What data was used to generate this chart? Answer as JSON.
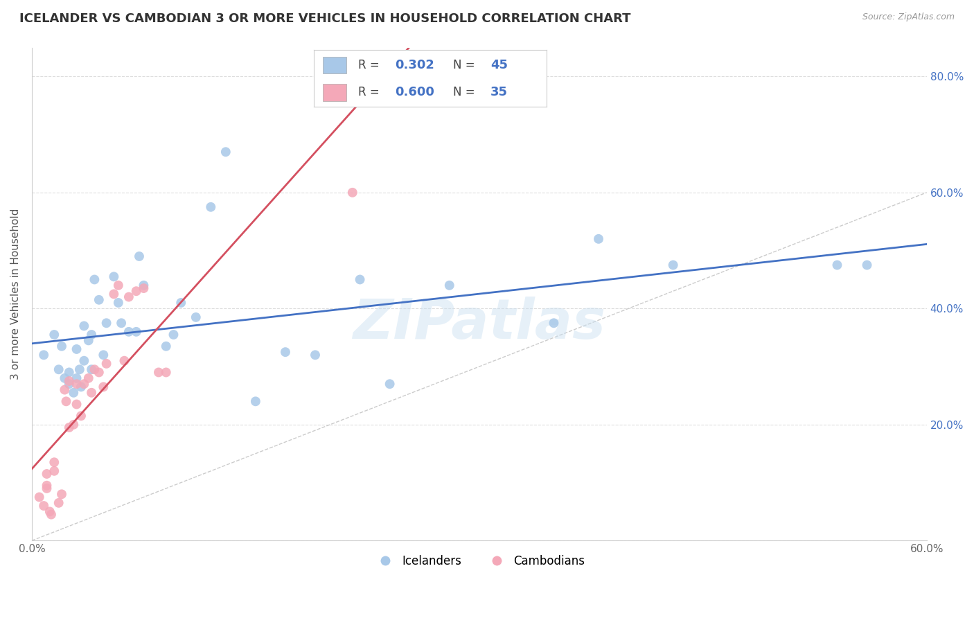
{
  "title": "ICELANDER VS CAMBODIAN 3 OR MORE VEHICLES IN HOUSEHOLD CORRELATION CHART",
  "source": "Source: ZipAtlas.com",
  "ylabel": "3 or more Vehicles in Household",
  "xlim": [
    0,
    0.6
  ],
  "ylim": [
    0,
    0.85
  ],
  "blue_color": "#a8c8e8",
  "pink_color": "#f4a8b8",
  "blue_line_color": "#4472c4",
  "pink_line_color": "#d45060",
  "diagonal_color": "#cccccc",
  "watermark": "ZIPatlas",
  "icelanders_R": "0.302",
  "icelanders_N": "45",
  "cambodians_R": "0.600",
  "cambodians_N": "35",
  "icelanders_x": [
    0.008,
    0.015,
    0.018,
    0.02,
    0.022,
    0.025,
    0.025,
    0.028,
    0.03,
    0.03,
    0.032,
    0.033,
    0.035,
    0.035,
    0.038,
    0.04,
    0.04,
    0.042,
    0.045,
    0.048,
    0.05,
    0.055,
    0.058,
    0.06,
    0.065,
    0.07,
    0.072,
    0.075,
    0.09,
    0.095,
    0.1,
    0.11,
    0.12,
    0.13,
    0.15,
    0.17,
    0.19,
    0.22,
    0.24,
    0.28,
    0.35,
    0.38,
    0.43,
    0.54,
    0.56
  ],
  "icelanders_y": [
    0.32,
    0.355,
    0.295,
    0.335,
    0.28,
    0.29,
    0.27,
    0.255,
    0.33,
    0.28,
    0.295,
    0.265,
    0.37,
    0.31,
    0.345,
    0.355,
    0.295,
    0.45,
    0.415,
    0.32,
    0.375,
    0.455,
    0.41,
    0.375,
    0.36,
    0.36,
    0.49,
    0.44,
    0.335,
    0.355,
    0.41,
    0.385,
    0.575,
    0.67,
    0.24,
    0.325,
    0.32,
    0.45,
    0.27,
    0.44,
    0.375,
    0.52,
    0.475,
    0.475,
    0.475
  ],
  "cambodians_x": [
    0.005,
    0.008,
    0.01,
    0.01,
    0.01,
    0.012,
    0.013,
    0.015,
    0.015,
    0.018,
    0.02,
    0.022,
    0.023,
    0.025,
    0.025,
    0.028,
    0.03,
    0.03,
    0.033,
    0.035,
    0.038,
    0.04,
    0.042,
    0.045,
    0.048,
    0.05,
    0.055,
    0.058,
    0.062,
    0.065,
    0.07,
    0.075,
    0.085,
    0.09,
    0.215
  ],
  "cambodians_y": [
    0.075,
    0.06,
    0.115,
    0.09,
    0.095,
    0.05,
    0.045,
    0.135,
    0.12,
    0.065,
    0.08,
    0.26,
    0.24,
    0.195,
    0.275,
    0.2,
    0.27,
    0.235,
    0.215,
    0.27,
    0.28,
    0.255,
    0.295,
    0.29,
    0.265,
    0.305,
    0.425,
    0.44,
    0.31,
    0.42,
    0.43,
    0.435,
    0.29,
    0.29,
    0.6
  ]
}
